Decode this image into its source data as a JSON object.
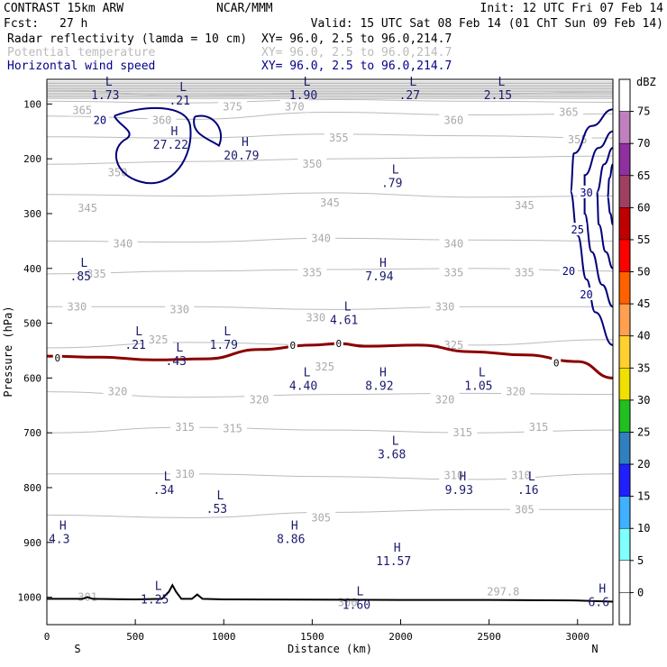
{
  "header": {
    "model": "CONTRAST 15km ARW",
    "org": "NCAR/MMM",
    "init": "Init: 12 UTC Fri 07 Feb 14",
    "fcst_label": "Fcst:",
    "fcst_value": "27 h",
    "valid": "Valid: 15 UTC Sat 08 Feb 14 (01 ChT Sun 09 Feb 14)",
    "fields": [
      {
        "name": "Radar reflectivity (lamda = 10 cm)",
        "xy": "XY=  96.0,  2.5 to  96.0,214.7",
        "color": "#000000"
      },
      {
        "name": "Potential temperature",
        "xy": "XY=  96.0,  2.5 to  96.0,214.7",
        "color": "#bbbbbb"
      },
      {
        "name": "Horizontal wind speed",
        "xy": "XY=  96.0,  2.5 to  96.0,214.7",
        "color": "#00008b"
      }
    ]
  },
  "chart_data": {
    "type": "cross-section",
    "xlabel": "Distance (km)",
    "ylabel": "Pressure (hPa)",
    "xlim": [
      0,
      3200
    ],
    "ylim": [
      1050,
      55
    ],
    "x_ticks": [
      0,
      500,
      1000,
      1500,
      2000,
      2500,
      3000
    ],
    "y_ticks": [
      100,
      200,
      300,
      400,
      500,
      600,
      700,
      800,
      900,
      1000
    ],
    "x_end_labels": {
      "left": "S",
      "right": "N"
    },
    "colorbar": {
      "unit": "dBZ",
      "levels": [
        75,
        70,
        65,
        60,
        55,
        50,
        45,
        40,
        35,
        30,
        25,
        20,
        15,
        10,
        5,
        0
      ],
      "colors": [
        "#ffffff",
        "#c080c0",
        "#9030a0",
        "#a04060",
        "#c00000",
        "#ff0000",
        "#ff6000",
        "#ffa050",
        "#ffd030",
        "#f0e000",
        "#20c020",
        "#3080c0",
        "#2020ff",
        "#40b0ff",
        "#80ffff",
        "#ffffff",
        "#ffffff"
      ]
    },
    "theta_contours": [
      {
        "label": "370",
        "p": [
          75,
          85,
          80,
          82,
          78
        ]
      },
      {
        "label": "365",
        "p": [
          95,
          98,
          92,
          95,
          97
        ]
      },
      {
        "label": "360",
        "p": [
          122,
          128,
          115,
          120,
          118
        ]
      },
      {
        "label": "355",
        "p": [
          160,
          162,
          155,
          158,
          162
        ]
      },
      {
        "label": "350",
        "p": [
          210,
          205,
          200,
          198,
          195
        ]
      },
      {
        "label": "345",
        "p": [
          265,
          268,
          262,
          270,
          268
        ]
      },
      {
        "label": "340",
        "p": [
          350,
          352,
          345,
          348,
          350
        ]
      },
      {
        "label": "335",
        "p": [
          410,
          405,
          402,
          400,
          405
        ]
      },
      {
        "label": "330",
        "p": [
          470,
          470,
          475,
          470,
          470
        ]
      },
      {
        "label": "325",
        "p": [
          545,
          535,
          540,
          540,
          530
        ]
      },
      {
        "label": "320",
        "p": [
          625,
          635,
          630,
          628,
          630
        ]
      },
      {
        "label": "315",
        "p": [
          700,
          690,
          695,
          700,
          695
        ]
      },
      {
        "label": "310",
        "p": [
          775,
          775,
          780,
          785,
          775
        ]
      },
      {
        "label": "305",
        "p": [
          850,
          855,
          845,
          840,
          840
        ]
      }
    ],
    "theta_labels": [
      {
        "text": "375",
        "x": 1050,
        "p": 105
      },
      {
        "text": "370",
        "x": 1400,
        "p": 105
      },
      {
        "text": "365",
        "x": 200,
        "p": 112
      },
      {
        "text": "365",
        "x": 2950,
        "p": 115
      },
      {
        "text": "360",
        "x": 650,
        "p": 130
      },
      {
        "text": "360",
        "x": 2300,
        "p": 130
      },
      {
        "text": "355",
        "x": 1650,
        "p": 162
      },
      {
        "text": "355",
        "x": 3000,
        "p": 165
      },
      {
        "text": "350",
        "x": 400,
        "p": 225
      },
      {
        "text": "350",
        "x": 1500,
        "p": 210
      },
      {
        "text": "345",
        "x": 230,
        "p": 290
      },
      {
        "text": "345",
        "x": 1600,
        "p": 280
      },
      {
        "text": "345",
        "x": 2700,
        "p": 285
      },
      {
        "text": "340",
        "x": 430,
        "p": 355
      },
      {
        "text": "340",
        "x": 1550,
        "p": 345
      },
      {
        "text": "340",
        "x": 2300,
        "p": 355
      },
      {
        "text": "335",
        "x": 280,
        "p": 410
      },
      {
        "text": "335",
        "x": 1500,
        "p": 408
      },
      {
        "text": "335",
        "x": 2300,
        "p": 408
      },
      {
        "text": "335",
        "x": 2700,
        "p": 408
      },
      {
        "text": "330",
        "x": 170,
        "p": 470
      },
      {
        "text": "330",
        "x": 750,
        "p": 475
      },
      {
        "text": "330",
        "x": 1520,
        "p": 490
      },
      {
        "text": "330",
        "x": 2250,
        "p": 470
      },
      {
        "text": "325",
        "x": 630,
        "p": 530
      },
      {
        "text": "325",
        "x": 1570,
        "p": 580
      },
      {
        "text": "325",
        "x": 2300,
        "p": 540
      },
      {
        "text": "320",
        "x": 400,
        "p": 625
      },
      {
        "text": "320",
        "x": 1200,
        "p": 640
      },
      {
        "text": "320",
        "x": 2250,
        "p": 640
      },
      {
        "text": "320",
        "x": 2650,
        "p": 625
      },
      {
        "text": "315",
        "x": 780,
        "p": 690
      },
      {
        "text": "315",
        "x": 1050,
        "p": 692
      },
      {
        "text": "315",
        "x": 2350,
        "p": 700
      },
      {
        "text": "315",
        "x": 2780,
        "p": 690
      },
      {
        "text": "310",
        "x": 780,
        "p": 775
      },
      {
        "text": "310",
        "x": 2300,
        "p": 778
      },
      {
        "text": "310",
        "x": 2680,
        "p": 778
      },
      {
        "text": "305",
        "x": 1550,
        "p": 855
      },
      {
        "text": "305",
        "x": 2700,
        "p": 840
      },
      {
        "text": "301",
        "x": 230,
        "p": 1000
      },
      {
        "text": "300",
        "x": 1700,
        "p": 1010
      },
      {
        "text": "297.8",
        "x": 2580,
        "p": 990
      }
    ],
    "zero_line": {
      "label": "0",
      "x": [
        0,
        300,
        600,
        900,
        1200,
        1500,
        1650,
        1800,
        2100,
        2400,
        2700,
        3000,
        3200
      ],
      "p": [
        560,
        562,
        567,
        565,
        548,
        540,
        537,
        542,
        540,
        552,
        558,
        570,
        600
      ]
    },
    "wind_contours": [
      {
        "label": "20",
        "x": 300,
        "p": 130
      },
      {
        "label": "30",
        "x": 3050,
        "p": 262
      },
      {
        "label": "25",
        "x": 3000,
        "p": 330
      },
      {
        "label": "20",
        "x": 2950,
        "p": 405
      },
      {
        "label": "20",
        "x": 3050,
        "p": 448
      }
    ],
    "extrema": [
      {
        "type": "L",
        "value": "1.73",
        "x": 330,
        "p": 70
      },
      {
        "type": "L",
        "value": ".21",
        "x": 750,
        "p": 80
      },
      {
        "type": "L",
        "value": "1.90",
        "x": 1450,
        "p": 70
      },
      {
        "type": "L",
        "value": ".27",
        "x": 2050,
        "p": 70
      },
      {
        "type": "L",
        "value": "2.15",
        "x": 2550,
        "p": 70
      },
      {
        "type": "H",
        "value": "27.22",
        "x": 700,
        "p": 160
      },
      {
        "type": "H",
        "value": "20.79",
        "x": 1100,
        "p": 180
      },
      {
        "type": "L",
        "value": ".79",
        "x": 1950,
        "p": 230
      },
      {
        "type": "L",
        "value": ".85",
        "x": 190,
        "p": 400
      },
      {
        "type": "H",
        "value": "7.94",
        "x": 1880,
        "p": 400
      },
      {
        "type": "L",
        "value": "4.61",
        "x": 1680,
        "p": 480
      },
      {
        "type": "L",
        "value": ".21",
        "x": 500,
        "p": 525
      },
      {
        "type": "L",
        "value": "1.79",
        "x": 1000,
        "p": 525
      },
      {
        "type": "L",
        "value": ".43",
        "x": 730,
        "p": 555
      },
      {
        "type": "L",
        "value": "4.40",
        "x": 1450,
        "p": 600
      },
      {
        "type": "H",
        "value": "8.92",
        "x": 1880,
        "p": 600
      },
      {
        "type": "L",
        "value": "1.05",
        "x": 2440,
        "p": 600
      },
      {
        "type": "L",
        "value": "3.68",
        "x": 1950,
        "p": 725
      },
      {
        "type": "L",
        "value": ".34",
        "x": 660,
        "p": 790
      },
      {
        "type": "L",
        "value": ".53",
        "x": 960,
        "p": 825
      },
      {
        "type": "H",
        "value": "9.93",
        "x": 2330,
        "p": 790
      },
      {
        "type": "L",
        "value": ".16",
        "x": 2720,
        "p": 790
      },
      {
        "type": "H",
        "value": "4.3",
        "x": 70,
        "p": 880
      },
      {
        "type": "H",
        "value": "8.86",
        "x": 1380,
        "p": 880
      },
      {
        "type": "H",
        "value": "11.57",
        "x": 1960,
        "p": 920
      },
      {
        "type": "L",
        "value": "1.25",
        "x": 610,
        "p": 990
      },
      {
        "type": "L",
        "value": "1.60",
        "x": 1750,
        "p": 1000
      },
      {
        "type": "H",
        "value": "6.6",
        "x": 3120,
        "p": 995
      }
    ],
    "terrain": {
      "x": [
        0,
        200,
        230,
        260,
        500,
        650,
        690,
        710,
        730,
        760,
        820,
        850,
        880,
        1000,
        2000,
        2500,
        3000,
        3200
      ],
      "p": [
        1003,
        1003,
        1000,
        1003,
        1004,
        1003,
        990,
        978,
        990,
        1003,
        1003,
        995,
        1003,
        1004,
        1005,
        1005,
        1006,
        1008
      ]
    }
  }
}
